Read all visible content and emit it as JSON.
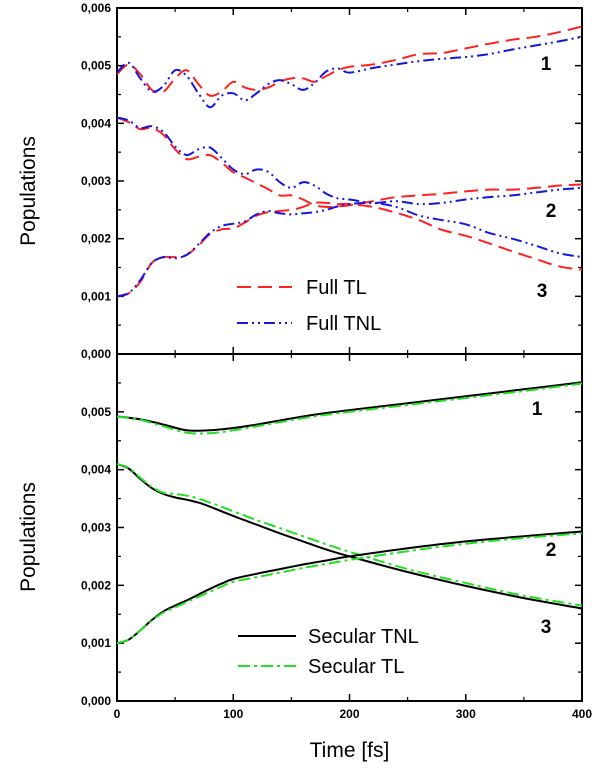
{
  "chart_data": [
    {
      "type": "line",
      "panel": "top",
      "xlabel": "",
      "ylabel": "Populations",
      "xlim": [
        0,
        400
      ],
      "ylim": [
        0,
        0.006
      ],
      "x_ticks": [
        0,
        100,
        200,
        300,
        400
      ],
      "y_ticks": [
        "0,000",
        "0,001",
        "0,002",
        "0,003",
        "0,004",
        "0,005",
        "0,006"
      ],
      "grid": false,
      "legend_position": "lower-center",
      "curve_labels": [
        "1",
        "2",
        "3"
      ],
      "series": [
        {
          "name": "Full TL",
          "style": "dashed",
          "color": "#ff2020",
          "curve": "1",
          "x": [
            0,
            10,
            20,
            30,
            40,
            50,
            60,
            70,
            80,
            90,
            100,
            110,
            120,
            130,
            140,
            150,
            160,
            170,
            180,
            190,
            200,
            220,
            240,
            260,
            280,
            300,
            320,
            340,
            360,
            380,
            400
          ],
          "y": [
            0.00485,
            0.00502,
            0.00485,
            0.00458,
            0.00455,
            0.00478,
            0.00492,
            0.00468,
            0.00448,
            0.00455,
            0.00472,
            0.00462,
            0.00458,
            0.00462,
            0.00472,
            0.00478,
            0.00478,
            0.00472,
            0.00482,
            0.00492,
            0.00498,
            0.00502,
            0.0051,
            0.0052,
            0.00522,
            0.0053,
            0.00538,
            0.00545,
            0.0055,
            0.00558,
            0.00568
          ]
        },
        {
          "name": "Full TNL",
          "style": "dash-dot-dot",
          "color": "#1515e0",
          "curve": "1",
          "x": [
            0,
            10,
            20,
            30,
            40,
            50,
            60,
            70,
            80,
            90,
            100,
            110,
            120,
            130,
            140,
            150,
            160,
            170,
            180,
            190,
            200,
            220,
            240,
            260,
            280,
            300,
            320,
            340,
            360,
            380,
            400
          ],
          "y": [
            0.00488,
            0.00505,
            0.00478,
            0.00455,
            0.00465,
            0.00492,
            0.00482,
            0.00452,
            0.00428,
            0.00448,
            0.00452,
            0.0044,
            0.00452,
            0.00468,
            0.00475,
            0.00468,
            0.00458,
            0.0047,
            0.0049,
            0.00495,
            0.00488,
            0.00496,
            0.00502,
            0.00508,
            0.00512,
            0.00515,
            0.0052,
            0.00528,
            0.00535,
            0.00542,
            0.0055
          ]
        },
        {
          "name": "Full TL",
          "style": "dashed",
          "color": "#ff2020",
          "curve": "2",
          "x": [
            0,
            10,
            20,
            30,
            40,
            50,
            60,
            70,
            80,
            90,
            100,
            110,
            120,
            130,
            140,
            150,
            160,
            170,
            180,
            190,
            200,
            220,
            240,
            260,
            280,
            300,
            320,
            340,
            360,
            380,
            400
          ],
          "y": [
            0.0041,
            0.00402,
            0.0039,
            0.00392,
            0.0038,
            0.00355,
            0.00338,
            0.00342,
            0.00345,
            0.00332,
            0.00315,
            0.00306,
            0.00296,
            0.00286,
            0.00275,
            0.00275,
            0.00268,
            0.00258,
            0.00255,
            0.00256,
            0.00258,
            0.00265,
            0.00272,
            0.00275,
            0.00278,
            0.00282,
            0.00285,
            0.00285,
            0.00288,
            0.00292,
            0.00294
          ]
        },
        {
          "name": "Full TNL",
          "style": "dash-dot-dot",
          "color": "#1515e0",
          "curve": "2",
          "x": [
            0,
            10,
            20,
            30,
            40,
            50,
            60,
            70,
            80,
            90,
            100,
            110,
            120,
            130,
            140,
            150,
            160,
            170,
            180,
            190,
            200,
            220,
            240,
            260,
            280,
            300,
            320,
            340,
            360,
            380,
            400
          ],
          "y": [
            0.0041,
            0.00405,
            0.00392,
            0.00395,
            0.00385,
            0.0036,
            0.00345,
            0.00355,
            0.00358,
            0.0034,
            0.0032,
            0.00312,
            0.0032,
            0.00316,
            0.00298,
            0.00288,
            0.00298,
            0.00292,
            0.00278,
            0.0027,
            0.00268,
            0.00262,
            0.00265,
            0.0026,
            0.00262,
            0.00268,
            0.00272,
            0.00275,
            0.0028,
            0.00285,
            0.00288
          ]
        },
        {
          "name": "Full TL",
          "style": "dashed",
          "color": "#ff2020",
          "curve": "3",
          "x": [
            0,
            10,
            20,
            30,
            40,
            50,
            60,
            70,
            80,
            90,
            100,
            110,
            120,
            130,
            140,
            150,
            160,
            170,
            180,
            190,
            200,
            220,
            240,
            260,
            280,
            300,
            320,
            340,
            360,
            380,
            400
          ],
          "y": [
            0.001,
            0.00105,
            0.00125,
            0.00158,
            0.00168,
            0.00168,
            0.00172,
            0.00188,
            0.00208,
            0.00216,
            0.00218,
            0.00228,
            0.0024,
            0.00246,
            0.00248,
            0.0025,
            0.00255,
            0.00262,
            0.00262,
            0.0026,
            0.0026,
            0.00255,
            0.00245,
            0.00232,
            0.00215,
            0.00205,
            0.00192,
            0.00178,
            0.00165,
            0.00152,
            0.00146
          ]
        },
        {
          "name": "Full TNL",
          "style": "dash-dot-dot",
          "color": "#1515e0",
          "curve": "3",
          "x": [
            0,
            10,
            20,
            30,
            40,
            50,
            60,
            70,
            80,
            90,
            100,
            110,
            120,
            130,
            140,
            150,
            160,
            170,
            180,
            190,
            200,
            220,
            240,
            260,
            280,
            300,
            320,
            340,
            360,
            380,
            400
          ],
          "y": [
            0.001,
            0.00106,
            0.00128,
            0.00158,
            0.00168,
            0.00166,
            0.00172,
            0.0019,
            0.0021,
            0.00222,
            0.00226,
            0.0023,
            0.00242,
            0.00248,
            0.00244,
            0.00242,
            0.00244,
            0.00246,
            0.0025,
            0.00256,
            0.0026,
            0.00262,
            0.00255,
            0.0024,
            0.00232,
            0.00225,
            0.0021,
            0.002,
            0.00188,
            0.00175,
            0.00168
          ]
        }
      ],
      "legend": [
        {
          "name": "Full TL",
          "style": "dashed",
          "color": "#ff2020"
        },
        {
          "name": "Full TNL",
          "style": "dash-dot-dot",
          "color": "#1515e0"
        }
      ]
    },
    {
      "type": "line",
      "panel": "bottom",
      "xlabel": "Time [fs]",
      "ylabel": "Populations",
      "xlim": [
        0,
        400
      ],
      "ylim": [
        0,
        0.006
      ],
      "x_ticks": [
        0,
        100,
        200,
        300,
        400
      ],
      "y_ticks": [
        "0,000",
        "0,001",
        "0,002",
        "0,003",
        "0,004",
        "0,005"
      ],
      "grid": false,
      "legend_position": "lower-center",
      "curve_labels": [
        "1",
        "2",
        "3"
      ],
      "series": [
        {
          "name": "Secular TNL",
          "style": "solid",
          "color": "#000000",
          "curve": "1",
          "x": [
            0,
            20,
            40,
            60,
            80,
            100,
            120,
            140,
            160,
            180,
            200,
            250,
            300,
            350,
            400
          ],
          "y": [
            0.00492,
            0.00487,
            0.00478,
            0.00468,
            0.00468,
            0.00472,
            0.00478,
            0.00485,
            0.00492,
            0.00498,
            0.00503,
            0.00515,
            0.00527,
            0.00539,
            0.00551
          ]
        },
        {
          "name": "Secular TL",
          "style": "dash-dot",
          "color": "#22e022",
          "curve": "1",
          "x": [
            0,
            20,
            40,
            60,
            80,
            100,
            120,
            140,
            160,
            180,
            200,
            250,
            300,
            350,
            400
          ],
          "y": [
            0.00492,
            0.00486,
            0.00475,
            0.00464,
            0.00463,
            0.00468,
            0.00475,
            0.00482,
            0.00489,
            0.00495,
            0.005,
            0.00512,
            0.00524,
            0.00536,
            0.00549
          ]
        },
        {
          "name": "Secular TNL",
          "style": "solid",
          "color": "#000000",
          "curve": "2",
          "x": [
            0,
            10,
            20,
            30,
            40,
            50,
            60,
            70,
            80,
            90,
            100,
            120,
            140,
            160,
            180,
            200,
            250,
            300,
            350,
            400
          ],
          "y": [
            0.0041,
            0.00402,
            0.00384,
            0.00368,
            0.00358,
            0.00352,
            0.00348,
            0.00343,
            0.00336,
            0.00328,
            0.0032,
            0.00305,
            0.0029,
            0.00276,
            0.00262,
            0.0025,
            0.00223,
            0.00199,
            0.00178,
            0.0016
          ]
        },
        {
          "name": "Secular TL",
          "style": "dash-dot",
          "color": "#22e022",
          "curve": "2",
          "x": [
            0,
            10,
            20,
            30,
            40,
            50,
            60,
            70,
            80,
            90,
            100,
            120,
            140,
            160,
            180,
            200,
            250,
            300,
            350,
            400
          ],
          "y": [
            0.0041,
            0.00403,
            0.00386,
            0.0037,
            0.0036,
            0.00358,
            0.00355,
            0.0035,
            0.00343,
            0.00336,
            0.00328,
            0.00313,
            0.00299,
            0.00285,
            0.00271,
            0.00258,
            0.00228,
            0.00204,
            0.00182,
            0.00165
          ]
        },
        {
          "name": "Secular TNL",
          "style": "solid",
          "color": "#000000",
          "curve": "3",
          "x": [
            0,
            10,
            20,
            30,
            40,
            50,
            60,
            70,
            80,
            90,
            100,
            120,
            140,
            160,
            180,
            200,
            250,
            300,
            350,
            400
          ],
          "y": [
            0.001,
            0.00106,
            0.00122,
            0.0014,
            0.00155,
            0.00165,
            0.00174,
            0.00184,
            0.00194,
            0.00203,
            0.00211,
            0.0022,
            0.00228,
            0.00236,
            0.00243,
            0.0025,
            0.00264,
            0.00276,
            0.00285,
            0.00293
          ]
        },
        {
          "name": "Secular TL",
          "style": "dash-dot",
          "color": "#22e022",
          "curve": "3",
          "x": [
            0,
            10,
            20,
            30,
            40,
            50,
            60,
            70,
            80,
            90,
            100,
            120,
            140,
            160,
            180,
            200,
            250,
            300,
            350,
            400
          ],
          "y": [
            0.001,
            0.00106,
            0.00122,
            0.00139,
            0.00153,
            0.00162,
            0.00171,
            0.0018,
            0.00189,
            0.00198,
            0.00206,
            0.00214,
            0.00222,
            0.0023,
            0.00237,
            0.00244,
            0.00259,
            0.00272,
            0.00282,
            0.0029
          ]
        }
      ],
      "legend": [
        {
          "name": "Secular TNL",
          "style": "solid",
          "color": "#000000"
        },
        {
          "name": "Secular TL",
          "style": "dash-dot",
          "color": "#22e022"
        }
      ]
    }
  ]
}
